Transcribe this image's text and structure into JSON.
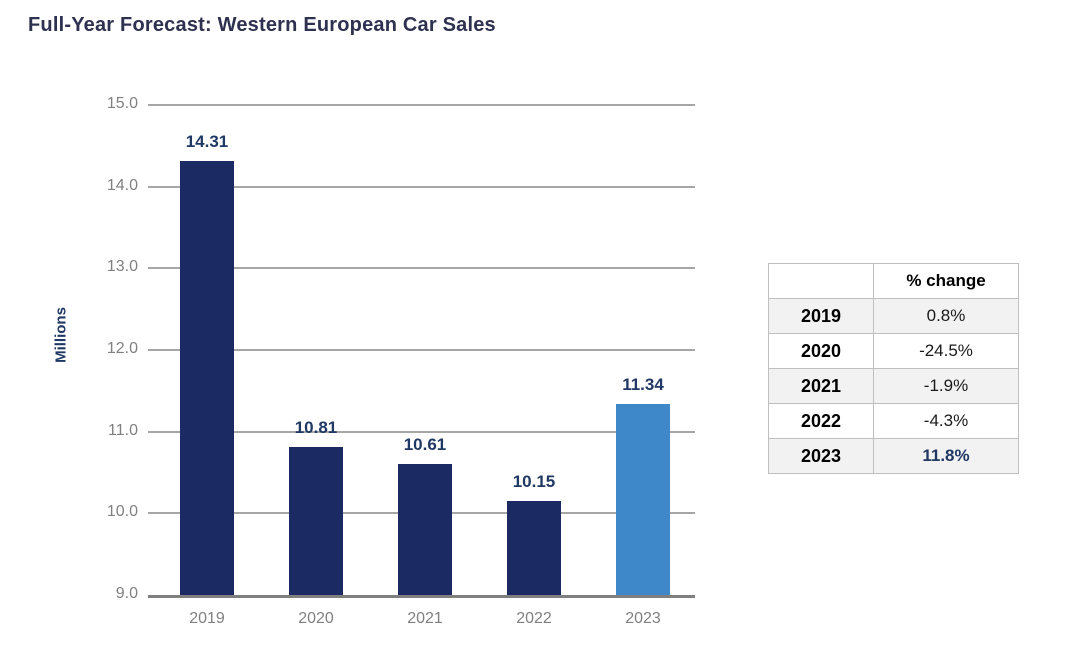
{
  "title": "Full-Year Forecast: Western European Car Sales",
  "chart_data": {
    "type": "bar",
    "title": "Full-Year Forecast: Western European Car Sales",
    "categories": [
      "2019",
      "2020",
      "2021",
      "2022",
      "2023"
    ],
    "values": [
      14.31,
      10.81,
      10.61,
      10.15,
      11.34
    ],
    "value_labels": [
      "14.31",
      "10.81",
      "10.61",
      "10.15",
      "11.34"
    ],
    "bar_colors": [
      "#1B2A63",
      "#1B2A63",
      "#1B2A63",
      "#1B2A63",
      "#3E87C9"
    ],
    "xlabel": "",
    "ylabel": "Millions",
    "ylim": [
      9.0,
      15.0
    ],
    "yticks": [
      {
        "value": 15.0,
        "label": "15.0"
      },
      {
        "value": 14.0,
        "label": "14.0"
      },
      {
        "value": 13.0,
        "label": "13.0"
      },
      {
        "value": 12.0,
        "label": "12.0"
      },
      {
        "value": 11.0,
        "label": "11.0"
      },
      {
        "value": 10.0,
        "label": "10.0"
      },
      {
        "value": 9.0,
        "label": "9.0"
      }
    ],
    "grid": true,
    "legend": "none"
  },
  "table": {
    "header": [
      "",
      "% change"
    ],
    "rows": [
      {
        "year": "2019",
        "change": "0.8%",
        "shaded": true,
        "highlight": false
      },
      {
        "year": "2020",
        "change": "-24.5%",
        "shaded": false,
        "highlight": false
      },
      {
        "year": "2021",
        "change": "-1.9%",
        "shaded": true,
        "highlight": false
      },
      {
        "year": "2022",
        "change": "-4.3%",
        "shaded": false,
        "highlight": false
      },
      {
        "year": "2023",
        "change": "11.8%",
        "shaded": true,
        "highlight": true
      }
    ]
  },
  "colors": {
    "bar_dark": "#1B2A63",
    "bar_light": "#3E87C9",
    "data_label_navy": "#1F3864",
    "title_navy": "#2E3150",
    "axis_text_gray": "#808080",
    "gridline_gray": "#A6A6A6",
    "axis_line_gray": "#7F7F7F",
    "table_shade": "#F2F2F2",
    "table_border": "#BFBFBF"
  }
}
